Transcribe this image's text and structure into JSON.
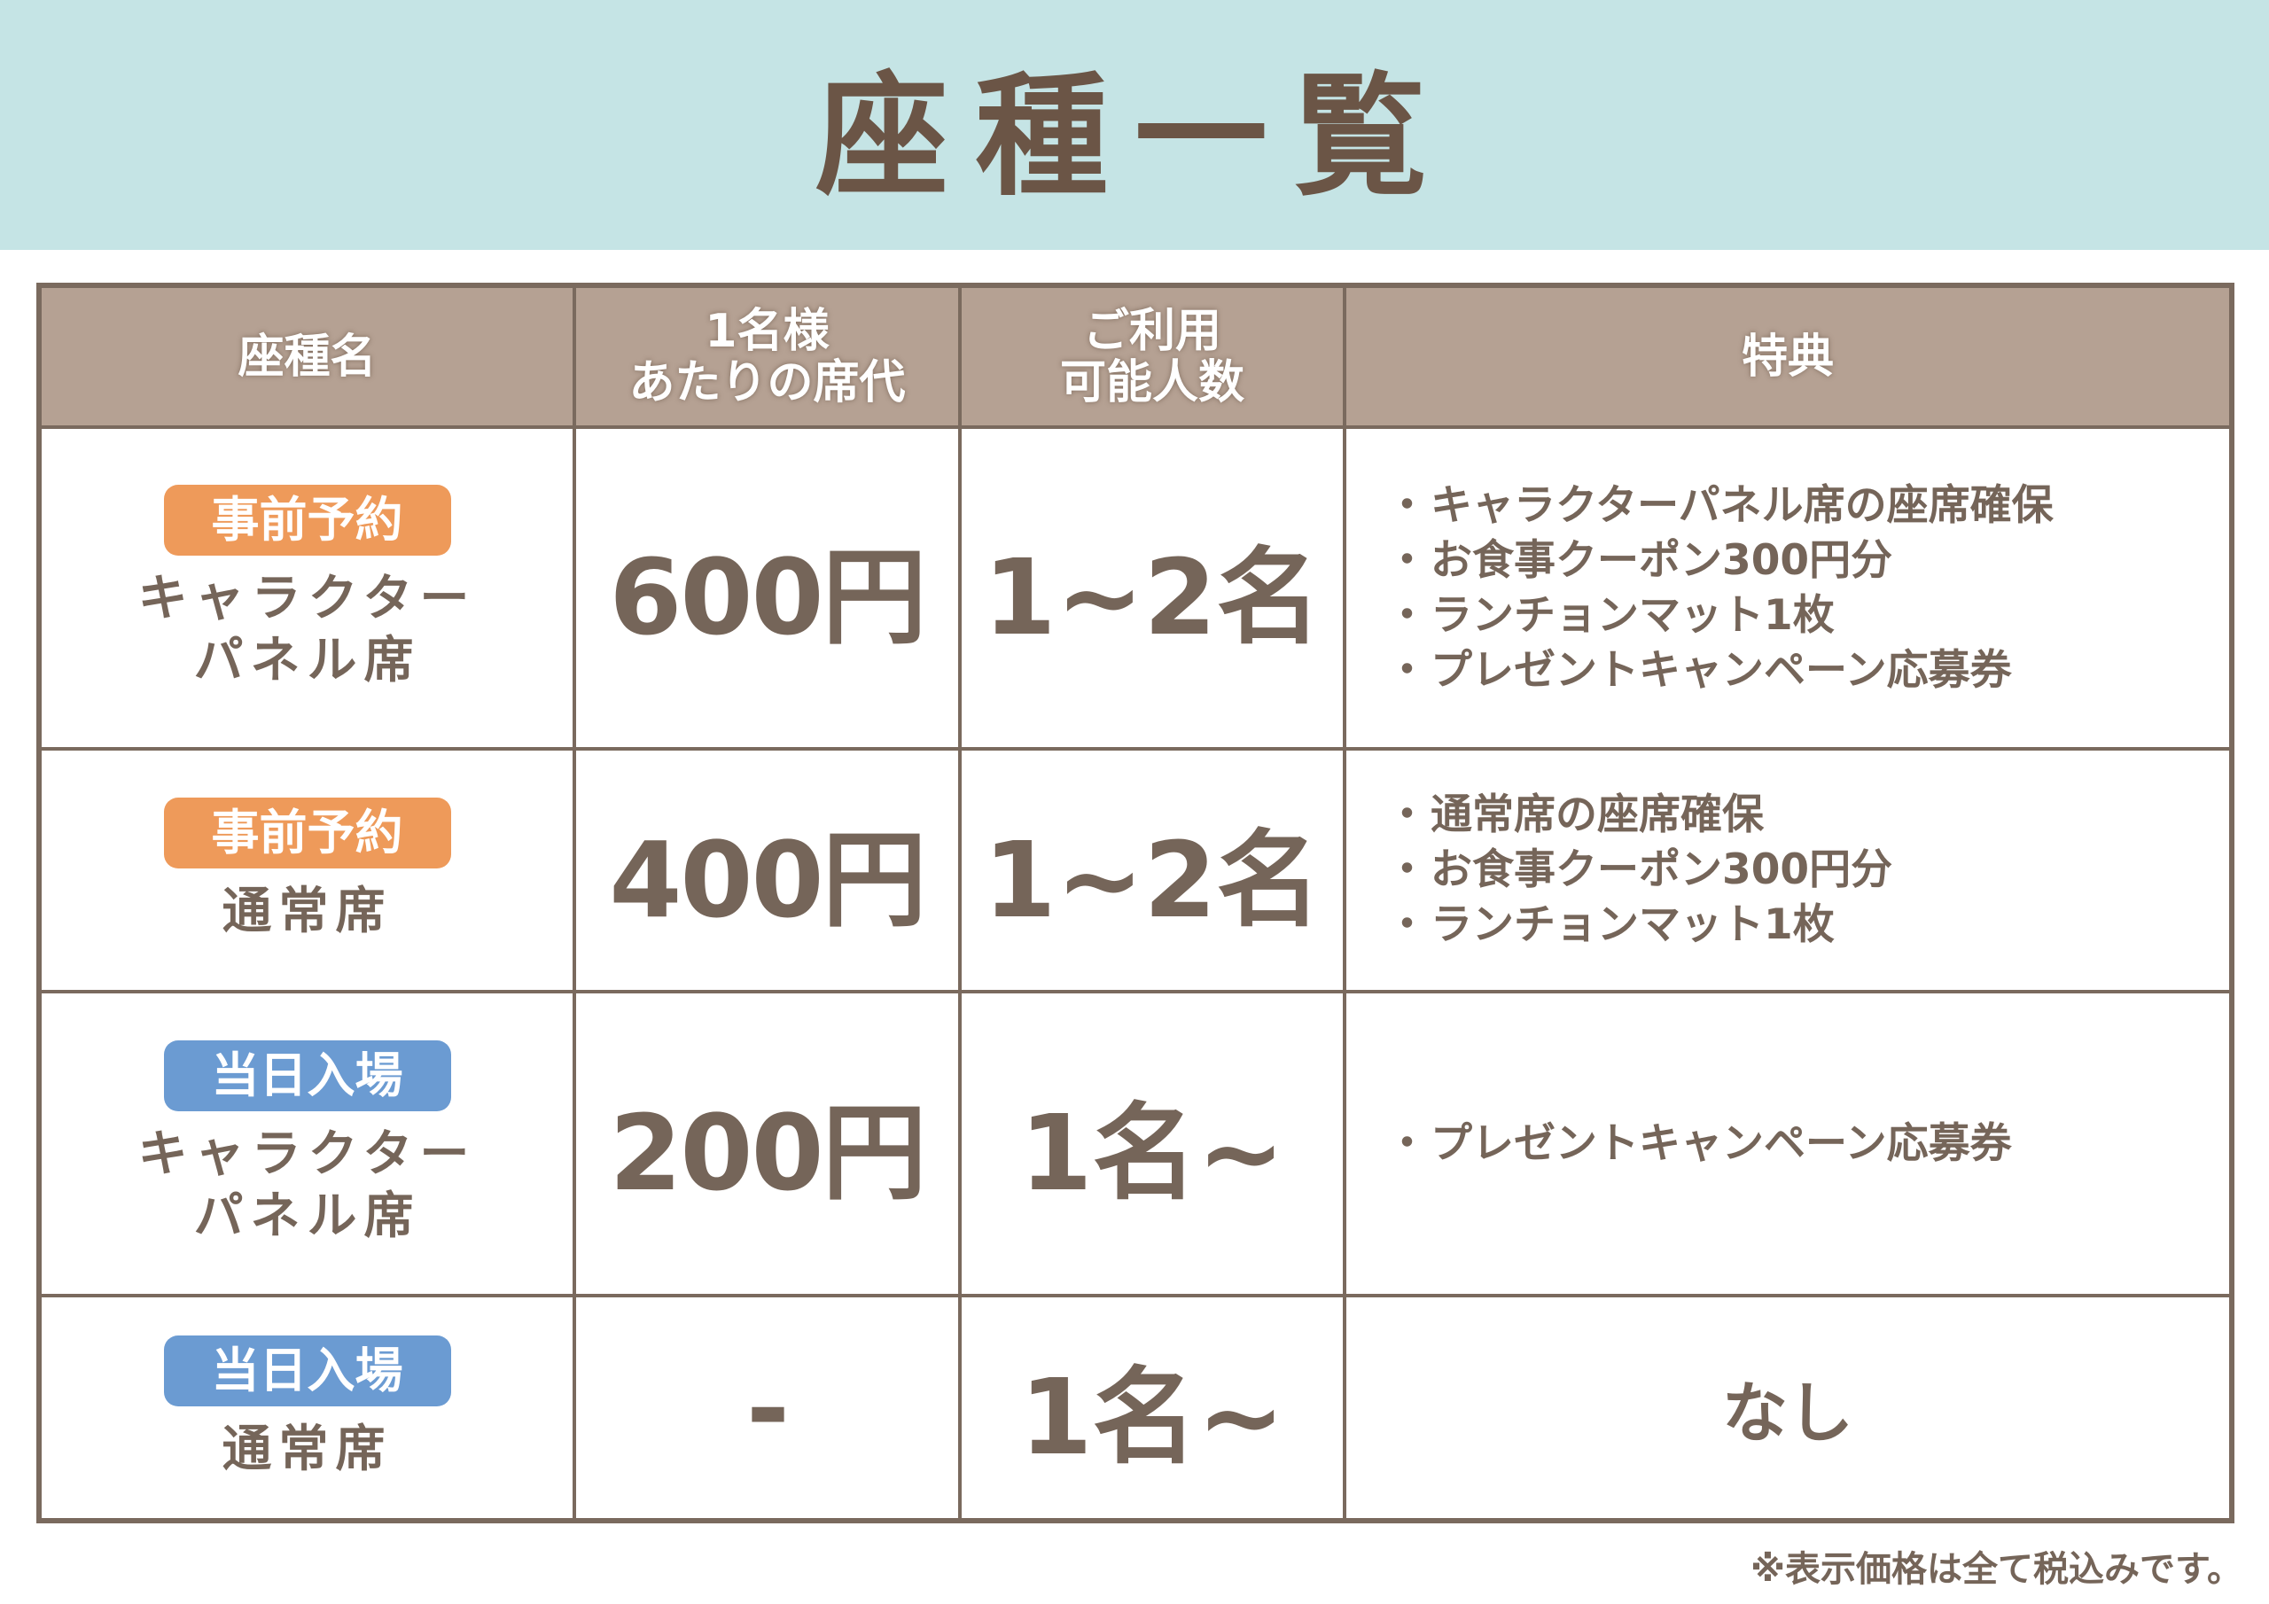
{
  "title": "座種一覧",
  "headers": [
    "座種名",
    "1名様\nあたりの席代",
    "ご利用\n可能人数",
    "特典"
  ],
  "rows": [
    {
      "badge": "事前予約",
      "badge_color": "#ee9a5a",
      "name": "キャラクター\nパネル席",
      "price": "600円",
      "capacity": "1~2名",
      "benefits": [
        "キャラクターパネル席の座席確保",
        "お食事クーポン300円分",
        "ランチョンマット1枚",
        "プレゼントキャンペーン応募券"
      ]
    },
    {
      "badge": "事前予約",
      "badge_color": "#ee9a5a",
      "name": "通常席",
      "price": "400円",
      "capacity": "1~2名",
      "benefits": [
        "通常席の座席確保",
        "お食事クーポン300円分",
        "ランチョンマット1枚"
      ]
    },
    {
      "badge": "当日入場",
      "badge_color": "#6b9bd2",
      "name": "キャラクター\nパネル席",
      "price": "200円",
      "capacity": "1名~",
      "benefits": [
        "プレゼントキャンペーン応募券"
      ]
    },
    {
      "badge": "当日入場",
      "badge_color": "#6b9bd2",
      "name": "通常席",
      "price": "-",
      "capacity": "1名~",
      "benefits_text": "なし"
    }
  ],
  "note": "※表示価格は全て税込みです。"
}
